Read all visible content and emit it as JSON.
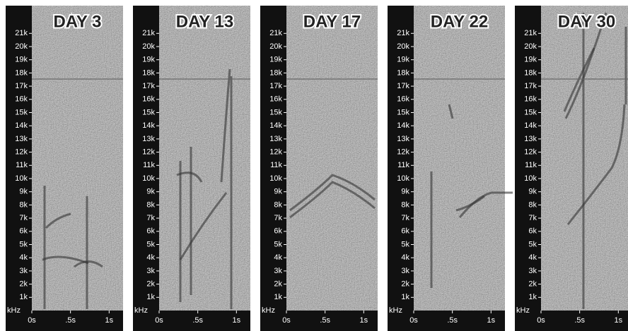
{
  "chart_data": [
    {
      "type": "spectrogram",
      "title": "DAY 3",
      "ylabel": "kHz",
      "ylim": [
        0,
        23.1
      ],
      "xlim": [
        0,
        1.18
      ],
      "yticks": [
        {
          "value": 1,
          "label": "1k"
        },
        {
          "value": 2,
          "label": "2k"
        },
        {
          "value": 3,
          "label": "3k"
        },
        {
          "value": 4,
          "label": "4k"
        },
        {
          "value": 5,
          "label": "5k"
        },
        {
          "value": 6,
          "label": "6k"
        },
        {
          "value": 7,
          "label": "7k"
        },
        {
          "value": 8,
          "label": "8k"
        },
        {
          "value": 9,
          "label": "9k"
        },
        {
          "value": 10,
          "label": "10k"
        },
        {
          "value": 11,
          "label": "11k"
        },
        {
          "value": 12,
          "label": "12k"
        },
        {
          "value": 13,
          "label": "13k"
        },
        {
          "value": 14,
          "label": "14k"
        },
        {
          "value": 15,
          "label": "15k"
        },
        {
          "value": 16,
          "label": "16k"
        },
        {
          "value": 17,
          "label": "17k"
        },
        {
          "value": 18,
          "label": "18k"
        },
        {
          "value": 19,
          "label": "19k"
        },
        {
          "value": 20,
          "label": "20k"
        },
        {
          "value": 21,
          "label": "21k"
        }
      ],
      "xticks": [
        {
          "value": 0,
          "label": "0s"
        },
        {
          "value": 0.5,
          "label": ".5s"
        },
        {
          "value": 1,
          "label": "1s"
        }
      ]
    },
    {
      "type": "spectrogram",
      "title": "DAY 13",
      "ylabel": "kHz",
      "ylim": [
        0,
        23.1
      ],
      "xlim": [
        0,
        1.18
      ],
      "yticks": [
        {
          "value": 1,
          "label": "1k"
        },
        {
          "value": 2,
          "label": "2k"
        },
        {
          "value": 3,
          "label": "3k"
        },
        {
          "value": 4,
          "label": "4k"
        },
        {
          "value": 5,
          "label": "5k"
        },
        {
          "value": 6,
          "label": "6k"
        },
        {
          "value": 7,
          "label": "7k"
        },
        {
          "value": 8,
          "label": "8k"
        },
        {
          "value": 9,
          "label": "9k"
        },
        {
          "value": 10,
          "label": "10k"
        },
        {
          "value": 11,
          "label": "11k"
        },
        {
          "value": 12,
          "label": "12k"
        },
        {
          "value": 13,
          "label": "13k"
        },
        {
          "value": 14,
          "label": "14k"
        },
        {
          "value": 15,
          "label": "15k"
        },
        {
          "value": 16,
          "label": "16k"
        },
        {
          "value": 17,
          "label": "17k"
        },
        {
          "value": 18,
          "label": "18k"
        },
        {
          "value": 19,
          "label": "19k"
        },
        {
          "value": 20,
          "label": "20k"
        },
        {
          "value": 21,
          "label": "21k"
        }
      ],
      "xticks": [
        {
          "value": 0,
          "label": "0s"
        },
        {
          "value": 0.5,
          "label": ".5s"
        },
        {
          "value": 1,
          "label": "1s"
        }
      ]
    },
    {
      "type": "spectrogram",
      "title": "DAY 17",
      "ylabel": "kHz",
      "ylim": [
        0,
        23.1
      ],
      "xlim": [
        0,
        1.18
      ],
      "yticks": [
        {
          "value": 1,
          "label": "1k"
        },
        {
          "value": 2,
          "label": "2k"
        },
        {
          "value": 3,
          "label": "3k"
        },
        {
          "value": 4,
          "label": "4k"
        },
        {
          "value": 5,
          "label": "5k"
        },
        {
          "value": 6,
          "label": "6k"
        },
        {
          "value": 7,
          "label": "7k"
        },
        {
          "value": 8,
          "label": "8k"
        },
        {
          "value": 9,
          "label": "9k"
        },
        {
          "value": 10,
          "label": "10k"
        },
        {
          "value": 11,
          "label": "11k"
        },
        {
          "value": 12,
          "label": "12k"
        },
        {
          "value": 13,
          "label": "13k"
        },
        {
          "value": 14,
          "label": "14k"
        },
        {
          "value": 15,
          "label": "15k"
        },
        {
          "value": 16,
          "label": "16k"
        },
        {
          "value": 17,
          "label": "17k"
        },
        {
          "value": 18,
          "label": "18k"
        },
        {
          "value": 19,
          "label": "19k"
        },
        {
          "value": 20,
          "label": "20k"
        },
        {
          "value": 21,
          "label": "21k"
        }
      ],
      "xticks": [
        {
          "value": 0,
          "label": "0s"
        },
        {
          "value": 0.5,
          "label": ".5s"
        },
        {
          "value": 1,
          "label": "1s"
        }
      ]
    },
    {
      "type": "spectrogram",
      "title": "DAY 22",
      "ylabel": "kHz",
      "ylim": [
        0,
        23.1
      ],
      "xlim": [
        0,
        1.18
      ],
      "yticks": [
        {
          "value": 1,
          "label": "1k"
        },
        {
          "value": 2,
          "label": "2k"
        },
        {
          "value": 3,
          "label": "3k"
        },
        {
          "value": 4,
          "label": "4k"
        },
        {
          "value": 5,
          "label": "5k"
        },
        {
          "value": 6,
          "label": "6k"
        },
        {
          "value": 7,
          "label": "7k"
        },
        {
          "value": 8,
          "label": "8k"
        },
        {
          "value": 9,
          "label": "9k"
        },
        {
          "value": 10,
          "label": "10k"
        },
        {
          "value": 11,
          "label": "11k"
        },
        {
          "value": 12,
          "label": "12k"
        },
        {
          "value": 13,
          "label": "13k"
        },
        {
          "value": 14,
          "label": "14k"
        },
        {
          "value": 15,
          "label": "15k"
        },
        {
          "value": 16,
          "label": "16k"
        },
        {
          "value": 17,
          "label": "17k"
        },
        {
          "value": 18,
          "label": "18k"
        },
        {
          "value": 19,
          "label": "19k"
        },
        {
          "value": 20,
          "label": "20k"
        },
        {
          "value": 21,
          "label": "21k"
        }
      ],
      "xticks": [
        {
          "value": 0,
          "label": "0s"
        },
        {
          "value": 0.5,
          "label": ".5s"
        },
        {
          "value": 1,
          "label": "1s"
        }
      ]
    },
    {
      "type": "spectrogram",
      "title": "DAY 30",
      "ylabel": "kHz",
      "ylim": [
        0,
        23.1
      ],
      "xlim": [
        0,
        1.18
      ],
      "yticks": [
        {
          "value": 1,
          "label": "1k"
        },
        {
          "value": 2,
          "label": "2k"
        },
        {
          "value": 3,
          "label": "3k"
        },
        {
          "value": 4,
          "label": "4k"
        },
        {
          "value": 5,
          "label": "5k"
        },
        {
          "value": 6,
          "label": "6k"
        },
        {
          "value": 7,
          "label": "7k"
        },
        {
          "value": 8,
          "label": "8k"
        },
        {
          "value": 9,
          "label": "9k"
        },
        {
          "value": 10,
          "label": "10k"
        },
        {
          "value": 11,
          "label": "11k"
        },
        {
          "value": 12,
          "label": "12k"
        },
        {
          "value": 13,
          "label": "13k"
        },
        {
          "value": 14,
          "label": "14k"
        },
        {
          "value": 15,
          "label": "15k"
        },
        {
          "value": 16,
          "label": "16k"
        },
        {
          "value": 17,
          "label": "17k"
        },
        {
          "value": 18,
          "label": "18k"
        },
        {
          "value": 19,
          "label": "19k"
        },
        {
          "value": 20,
          "label": "20k"
        },
        {
          "value": 21,
          "label": "21k"
        }
      ],
      "xticks": [
        {
          "value": 0,
          "label": "0s"
        },
        {
          "value": 0.5,
          "label": ".5s"
        },
        {
          "value": 1,
          "label": "1s"
        }
      ]
    }
  ]
}
